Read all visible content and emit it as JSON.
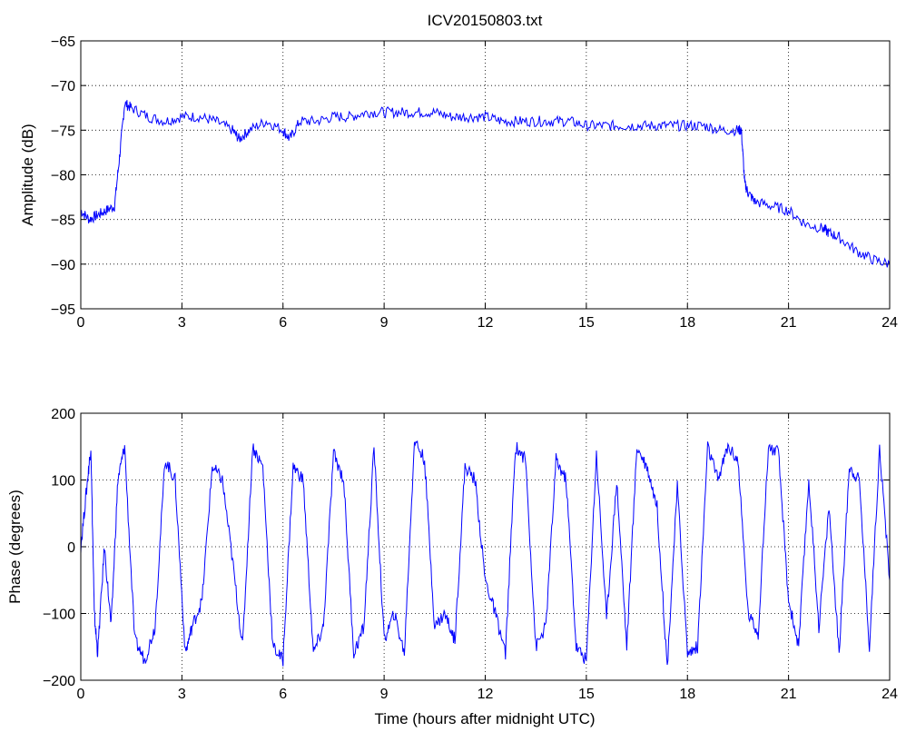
{
  "figure_title": "ICV20150803.txt",
  "chart_data": [
    {
      "type": "line",
      "title": "ICV20150803.txt",
      "xlabel": "",
      "ylabel": "Amplitude (dB)",
      "xlim": [
        0,
        24
      ],
      "ylim": [
        -95,
        -65
      ],
      "xticks": [
        0,
        3,
        6,
        9,
        12,
        15,
        18,
        21,
        24
      ],
      "yticks": [
        -95,
        -90,
        -85,
        -80,
        -75,
        -70,
        -65
      ],
      "grid": true,
      "line_color": "#0000ff",
      "series": [
        {
          "x": [
            0,
            0.25,
            0.5,
            0.75,
            1.0,
            1.15,
            1.3,
            1.5,
            2.0,
            2.5,
            3.0,
            3.5,
            4.0,
            4.5,
            4.7,
            5.0,
            5.5,
            6.0,
            6.2,
            6.5,
            7.0,
            7.5,
            8.0,
            8.5,
            9.0,
            9.5,
            10.0,
            10.5,
            11.0,
            11.5,
            12.0,
            12.5,
            13.0,
            13.5,
            14.0,
            14.5,
            15.0,
            15.5,
            16.0,
            16.5,
            17.0,
            17.5,
            18.0,
            18.5,
            19.0,
            19.5,
            19.6,
            19.7,
            19.8,
            20.0,
            20.5,
            21.0,
            21.5,
            22.0,
            22.2,
            22.5,
            23.0,
            23.5,
            24.0
          ],
          "y": [
            -84,
            -85,
            -84.5,
            -84,
            -83.5,
            -78,
            -72,
            -72.5,
            -73.5,
            -74,
            -73.5,
            -73.5,
            -74,
            -75,
            -76,
            -75,
            -74,
            -75,
            -76,
            -74,
            -74,
            -73.5,
            -73.5,
            -73,
            -73,
            -73,
            -73,
            -73,
            -73.5,
            -73.5,
            -73.5,
            -74,
            -74,
            -74,
            -74,
            -74,
            -74.5,
            -74.5,
            -74.5,
            -74.5,
            -74.5,
            -74.5,
            -74.5,
            -74.5,
            -75,
            -75,
            -75,
            -81,
            -82,
            -83,
            -83.5,
            -84,
            -85.5,
            -86,
            -86.5,
            -87,
            -88.5,
            -89.5,
            -90
          ]
        }
      ]
    },
    {
      "type": "line",
      "title": "",
      "xlabel": "Time (hours after midnight UTC)",
      "ylabel": "Phase (degrees)",
      "xlim": [
        0,
        24
      ],
      "ylim": [
        -200,
        200
      ],
      "xticks": [
        0,
        3,
        6,
        9,
        12,
        15,
        18,
        21,
        24
      ],
      "yticks": [
        -200,
        -100,
        0,
        100,
        200
      ],
      "grid": true,
      "line_color": "#0000ff",
      "series": [
        {
          "x": [
            0,
            0.2,
            0.3,
            0.4,
            0.5,
            0.7,
            0.9,
            1.1,
            1.3,
            1.6,
            1.9,
            2.2,
            2.5,
            2.8,
            3.1,
            3.3,
            3.6,
            3.9,
            4.2,
            4.5,
            4.8,
            5.1,
            5.4,
            5.7,
            6.0,
            6.3,
            6.6,
            6.9,
            7.2,
            7.5,
            7.8,
            8.1,
            8.4,
            8.7,
            9.0,
            9.3,
            9.6,
            9.9,
            10.2,
            10.5,
            10.8,
            11.1,
            11.4,
            11.7,
            12.0,
            12.3,
            12.6,
            12.9,
            13.2,
            13.5,
            13.8,
            14.1,
            14.4,
            14.7,
            15.0,
            15.3,
            15.6,
            15.9,
            16.2,
            16.5,
            16.8,
            17.1,
            17.4,
            17.7,
            18.0,
            18.3,
            18.6,
            18.9,
            19.2,
            19.5,
            19.8,
            20.1,
            20.4,
            20.7,
            21.0,
            21.3,
            21.6,
            21.9,
            22.2,
            22.5,
            22.8,
            23.1,
            23.4,
            23.7,
            24.0
          ],
          "y": [
            0,
            100,
            150,
            -100,
            -160,
            0,
            -120,
            100,
            150,
            -140,
            -170,
            -120,
            130,
            100,
            -160,
            -120,
            -80,
            120,
            100,
            -20,
            -150,
            150,
            120,
            -150,
            -170,
            120,
            100,
            -160,
            -120,
            140,
            100,
            -160,
            -120,
            150,
            -140,
            -100,
            -160,
            160,
            130,
            -120,
            -100,
            -140,
            120,
            100,
            -50,
            -100,
            -160,
            150,
            130,
            -150,
            -120,
            130,
            100,
            -150,
            -170,
            140,
            -110,
            100,
            -150,
            150,
            120,
            60,
            -180,
            90,
            -160,
            -150,
            150,
            100,
            150,
            130,
            -100,
            -130,
            150,
            140,
            -80,
            -150,
            100,
            -120,
            60,
            -160,
            120,
            100,
            -150,
            150,
            -50
          ]
        }
      ]
    }
  ]
}
